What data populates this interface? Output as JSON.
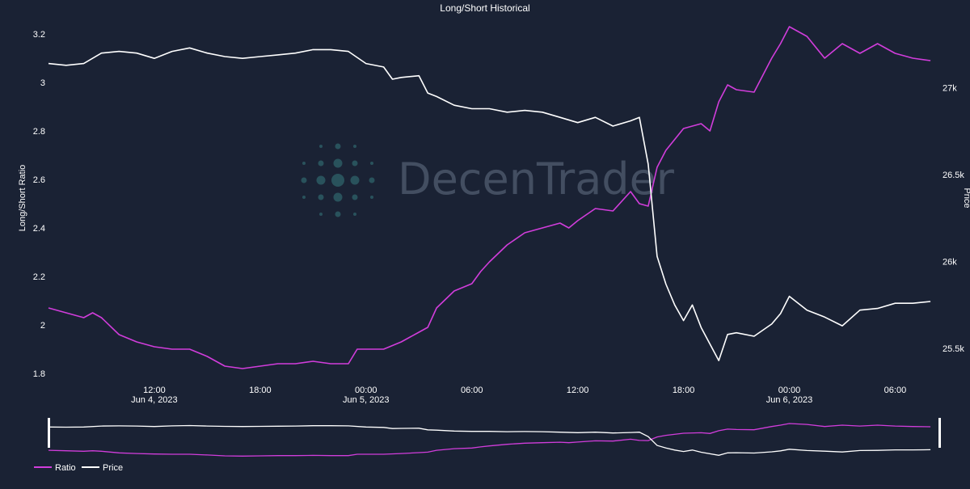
{
  "chart_data": {
    "type": "line",
    "title": "Long/Short Historical",
    "ylabel": "Long/Short Ratio",
    "y2label": "Price",
    "ylim": [
      1.76,
      3.3
    ],
    "y2lim": [
      25300,
      27450
    ],
    "xlim": [
      "2023-06-04T06:00",
      "2023-06-06T08:30"
    ],
    "x_ticks": [
      {
        "t": "2023-06-04T12:00",
        "label": "12:00",
        "sub": "Jun 4, 2023"
      },
      {
        "t": "2023-06-04T18:00",
        "label": "18:00",
        "sub": ""
      },
      {
        "t": "2023-06-05T00:00",
        "label": "00:00",
        "sub": "Jun 5, 2023"
      },
      {
        "t": "2023-06-05T06:00",
        "label": "06:00",
        "sub": ""
      },
      {
        "t": "2023-06-05T12:00",
        "label": "12:00",
        "sub": ""
      },
      {
        "t": "2023-06-05T18:00",
        "label": "18:00",
        "sub": ""
      },
      {
        "t": "2023-06-06T00:00",
        "label": "00:00",
        "sub": "Jun 6, 2023"
      },
      {
        "t": "2023-06-06T06:00",
        "label": "06:00",
        "sub": ""
      }
    ],
    "y_ticks": [
      {
        "v": 1.8,
        "label": "1.8"
      },
      {
        "v": 2.0,
        "label": "2"
      },
      {
        "v": 2.2,
        "label": "2.2"
      },
      {
        "v": 2.4,
        "label": "2.4"
      },
      {
        "v": 2.6,
        "label": "2.6"
      },
      {
        "v": 2.8,
        "label": "2.8"
      },
      {
        "v": 3.0,
        "label": "3"
      },
      {
        "v": 3.2,
        "label": "3.2"
      }
    ],
    "y2_ticks": [
      {
        "v": 25500,
        "label": "25.5k"
      },
      {
        "v": 26000,
        "label": "26k"
      },
      {
        "v": 26500,
        "label": "26.5k"
      },
      {
        "v": 27000,
        "label": "27k"
      }
    ],
    "series": [
      {
        "name": "Ratio",
        "axis": "left",
        "color": "#d13ddb",
        "points": [
          [
            "2023-06-04T06:00",
            2.07
          ],
          [
            "2023-06-04T07:00",
            2.05
          ],
          [
            "2023-06-04T08:00",
            2.03
          ],
          [
            "2023-06-04T08:30",
            2.05
          ],
          [
            "2023-06-04T09:00",
            2.03
          ],
          [
            "2023-06-04T10:00",
            1.96
          ],
          [
            "2023-06-04T11:00",
            1.93
          ],
          [
            "2023-06-04T12:00",
            1.91
          ],
          [
            "2023-06-04T13:00",
            1.9
          ],
          [
            "2023-06-04T14:00",
            1.9
          ],
          [
            "2023-06-04T15:00",
            1.87
          ],
          [
            "2023-06-04T16:00",
            1.83
          ],
          [
            "2023-06-04T17:00",
            1.82
          ],
          [
            "2023-06-04T18:00",
            1.83
          ],
          [
            "2023-06-04T19:00",
            1.84
          ],
          [
            "2023-06-04T20:00",
            1.84
          ],
          [
            "2023-06-04T21:00",
            1.85
          ],
          [
            "2023-06-04T22:00",
            1.84
          ],
          [
            "2023-06-04T23:00",
            1.84
          ],
          [
            "2023-06-04T23:30",
            1.9
          ],
          [
            "2023-06-05T00:00",
            1.9
          ],
          [
            "2023-06-05T01:00",
            1.9
          ],
          [
            "2023-06-05T02:00",
            1.93
          ],
          [
            "2023-06-05T03:00",
            1.97
          ],
          [
            "2023-06-05T03:30",
            1.99
          ],
          [
            "2023-06-05T04:00",
            2.07
          ],
          [
            "2023-06-05T05:00",
            2.14
          ],
          [
            "2023-06-05T06:00",
            2.17
          ],
          [
            "2023-06-05T06:30",
            2.22
          ],
          [
            "2023-06-05T07:00",
            2.26
          ],
          [
            "2023-06-05T08:00",
            2.33
          ],
          [
            "2023-06-05T09:00",
            2.38
          ],
          [
            "2023-06-05T10:00",
            2.4
          ],
          [
            "2023-06-05T11:00",
            2.42
          ],
          [
            "2023-06-05T11:30",
            2.4
          ],
          [
            "2023-06-05T12:00",
            2.43
          ],
          [
            "2023-06-05T13:00",
            2.48
          ],
          [
            "2023-06-05T14:00",
            2.47
          ],
          [
            "2023-06-05T15:00",
            2.55
          ],
          [
            "2023-06-05T15:30",
            2.5
          ],
          [
            "2023-06-05T16:00",
            2.49
          ],
          [
            "2023-06-05T16:30",
            2.65
          ],
          [
            "2023-06-05T17:00",
            2.72
          ],
          [
            "2023-06-05T18:00",
            2.81
          ],
          [
            "2023-06-05T19:00",
            2.83
          ],
          [
            "2023-06-05T19:30",
            2.8
          ],
          [
            "2023-06-05T20:00",
            2.92
          ],
          [
            "2023-06-05T20:30",
            2.99
          ],
          [
            "2023-06-05T21:00",
            2.97
          ],
          [
            "2023-06-05T22:00",
            2.96
          ],
          [
            "2023-06-05T23:00",
            3.1
          ],
          [
            "2023-06-05T23:30",
            3.16
          ],
          [
            "2023-06-06T00:00",
            3.23
          ],
          [
            "2023-06-06T01:00",
            3.19
          ],
          [
            "2023-06-06T02:00",
            3.1
          ],
          [
            "2023-06-06T03:00",
            3.16
          ],
          [
            "2023-06-06T04:00",
            3.12
          ],
          [
            "2023-06-06T05:00",
            3.16
          ],
          [
            "2023-06-06T06:00",
            3.12
          ],
          [
            "2023-06-06T07:00",
            3.1
          ],
          [
            "2023-06-06T08:00",
            3.09
          ]
        ]
      },
      {
        "name": "Price",
        "axis": "right",
        "color": "#ffffff",
        "points": [
          [
            "2023-06-04T06:00",
            27140
          ],
          [
            "2023-06-04T07:00",
            27130
          ],
          [
            "2023-06-04T08:00",
            27140
          ],
          [
            "2023-06-04T09:00",
            27200
          ],
          [
            "2023-06-04T10:00",
            27210
          ],
          [
            "2023-06-04T11:00",
            27200
          ],
          [
            "2023-06-04T12:00",
            27170
          ],
          [
            "2023-06-04T13:00",
            27210
          ],
          [
            "2023-06-04T14:00",
            27230
          ],
          [
            "2023-06-04T15:00",
            27200
          ],
          [
            "2023-06-04T16:00",
            27180
          ],
          [
            "2023-06-04T17:00",
            27170
          ],
          [
            "2023-06-04T18:00",
            27180
          ],
          [
            "2023-06-04T19:00",
            27190
          ],
          [
            "2023-06-04T20:00",
            27200
          ],
          [
            "2023-06-04T21:00",
            27220
          ],
          [
            "2023-06-04T22:00",
            27220
          ],
          [
            "2023-06-04T23:00",
            27210
          ],
          [
            "2023-06-05T00:00",
            27140
          ],
          [
            "2023-06-05T01:00",
            27120
          ],
          [
            "2023-06-05T01:30",
            27050
          ],
          [
            "2023-06-05T02:00",
            27060
          ],
          [
            "2023-06-05T03:00",
            27070
          ],
          [
            "2023-06-05T03:30",
            26970
          ],
          [
            "2023-06-05T04:00",
            26950
          ],
          [
            "2023-06-05T05:00",
            26900
          ],
          [
            "2023-06-05T06:00",
            26880
          ],
          [
            "2023-06-05T07:00",
            26880
          ],
          [
            "2023-06-05T08:00",
            26860
          ],
          [
            "2023-06-05T09:00",
            26870
          ],
          [
            "2023-06-05T10:00",
            26860
          ],
          [
            "2023-06-05T11:00",
            26830
          ],
          [
            "2023-06-05T12:00",
            26800
          ],
          [
            "2023-06-05T13:00",
            26830
          ],
          [
            "2023-06-05T14:00",
            26780
          ],
          [
            "2023-06-05T15:00",
            26810
          ],
          [
            "2023-06-05T15:30",
            26830
          ],
          [
            "2023-06-05T16:00",
            26560
          ],
          [
            "2023-06-05T16:30",
            26030
          ],
          [
            "2023-06-05T17:00",
            25870
          ],
          [
            "2023-06-05T17:30",
            25750
          ],
          [
            "2023-06-05T18:00",
            25660
          ],
          [
            "2023-06-05T18:30",
            25750
          ],
          [
            "2023-06-05T19:00",
            25620
          ],
          [
            "2023-06-05T20:00",
            25430
          ],
          [
            "2023-06-05T20:30",
            25580
          ],
          [
            "2023-06-05T21:00",
            25590
          ],
          [
            "2023-06-05T22:00",
            25570
          ],
          [
            "2023-06-05T23:00",
            25640
          ],
          [
            "2023-06-05T23:30",
            25700
          ],
          [
            "2023-06-06T00:00",
            25800
          ],
          [
            "2023-06-06T01:00",
            25720
          ],
          [
            "2023-06-06T02:00",
            25680
          ],
          [
            "2023-06-06T03:00",
            25630
          ],
          [
            "2023-06-06T04:00",
            25720
          ],
          [
            "2023-06-06T05:00",
            25730
          ],
          [
            "2023-06-06T06:00",
            25760
          ],
          [
            "2023-06-06T07:00",
            25760
          ],
          [
            "2023-06-06T08:00",
            25770
          ]
        ]
      }
    ],
    "legend": [
      {
        "name": "Ratio",
        "color": "#d13ddb"
      },
      {
        "name": "Price",
        "color": "#ffffff"
      }
    ],
    "legend_placement": "bottom-left",
    "grid": false,
    "range_slider": true
  },
  "watermark": {
    "part1": "Decen",
    "part2": "Trader"
  }
}
